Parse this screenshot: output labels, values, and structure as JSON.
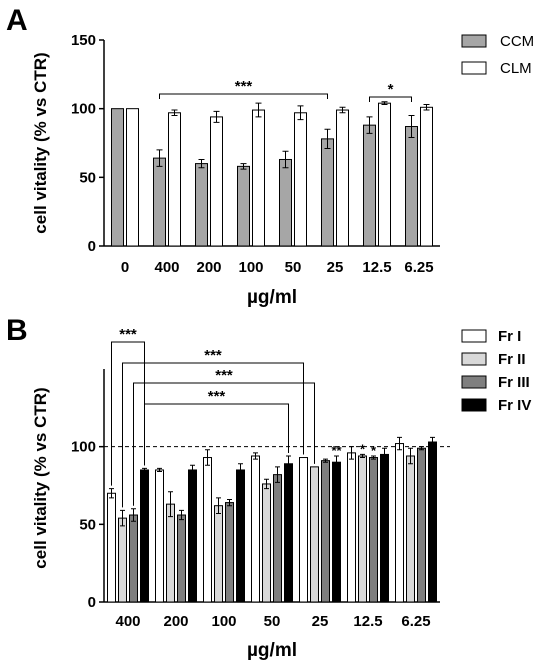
{
  "chart_data": [
    {
      "panel": "A",
      "type": "bar",
      "ylabel": "cell vitality (% vs CTR)",
      "xlabel": "µg/ml",
      "ylim": [
        0,
        150
      ],
      "yticks": [
        0,
        50,
        100,
        150
      ],
      "categories": [
        "0",
        "400",
        "200",
        "100",
        "50",
        "25",
        "12.5",
        "6.25"
      ],
      "legend_position": "top-right",
      "series": [
        {
          "name": "CCM",
          "color": "#a6a6a6",
          "values": [
            100,
            64,
            60,
            58,
            63,
            78,
            88,
            87
          ],
          "errors": [
            0,
            6,
            3,
            2,
            6,
            7,
            6,
            8
          ]
        },
        {
          "name": "CLM",
          "color": "#ffffff",
          "values": [
            100,
            97,
            94,
            99,
            97,
            99,
            104,
            101
          ],
          "errors": [
            0,
            2,
            4,
            5,
            5,
            2,
            1,
            2
          ]
        }
      ],
      "significance": [
        {
          "label": "***",
          "from_category": "400",
          "to_category": "25"
        },
        {
          "label": "*",
          "from_category": "12.5",
          "to_category": "6.25"
        }
      ]
    },
    {
      "panel": "B",
      "type": "bar",
      "ylabel": "cell vitality (% vs CTR)",
      "xlabel": "µg/ml",
      "ylim": [
        0,
        150
      ],
      "yticks": [
        0,
        50,
        100
      ],
      "reference_line": 100,
      "categories": [
        "400",
        "200",
        "100",
        "50",
        "25",
        "12.5",
        "6.25"
      ],
      "legend_position": "top-right",
      "series": [
        {
          "name": "Fr I",
          "color": "#ffffff",
          "values": [
            70,
            85,
            93,
            94,
            93,
            96,
            102
          ],
          "errors": [
            3,
            1,
            5,
            2,
            0,
            4,
            4
          ]
        },
        {
          "name": "Fr II",
          "color": "#d9d9d9",
          "values": [
            54,
            63,
            62,
            76,
            87,
            94,
            94
          ],
          "errors": [
            5,
            8,
            5,
            3,
            0,
            1,
            5
          ]
        },
        {
          "name": "Fr III",
          "color": "#7f7f7f",
          "values": [
            56,
            56,
            64,
            82,
            91,
            93,
            99
          ],
          "errors": [
            4,
            3,
            2,
            5,
            1,
            1,
            1
          ]
        },
        {
          "name": "Fr IV",
          "color": "#000000",
          "values": [
            85,
            85,
            85,
            89,
            90,
            95,
            103
          ],
          "errors": [
            1,
            3,
            4,
            5,
            4,
            4,
            3
          ]
        }
      ],
      "bar_annotations": [
        {
          "series": "Fr IV",
          "category": "25",
          "label": "**"
        },
        {
          "series": "Fr II",
          "category": "12.5",
          "label": "*"
        },
        {
          "series": "Fr III",
          "category": "12.5",
          "label": "*"
        }
      ],
      "significance": [
        {
          "label": "***",
          "from_category": "400",
          "from_series": "Fr I",
          "to_category": "400",
          "to_series": "Fr IV",
          "level": 1
        },
        {
          "label": "***",
          "from_category": "400",
          "from_series": "Fr II",
          "to_category": "25",
          "to_series": "Fr I",
          "level": 2
        },
        {
          "label": "***",
          "from_category": "400",
          "from_series": "Fr III",
          "to_category": "25",
          "to_series": "Fr II",
          "level": 3
        },
        {
          "label": "***",
          "from_category": "400",
          "from_series": "Fr IV",
          "to_category": "50",
          "to_series": "Fr IV",
          "level": 4
        }
      ]
    }
  ]
}
